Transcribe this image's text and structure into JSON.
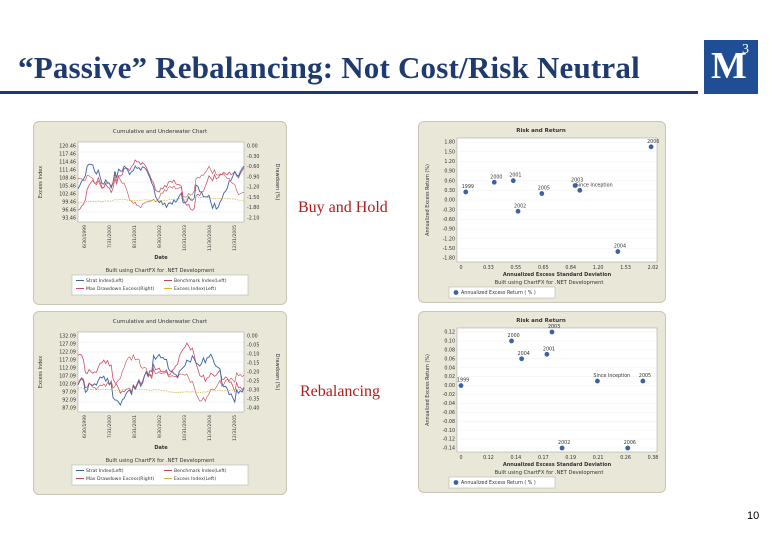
{
  "slide": {
    "title": "“Passive” Rebalancing: Not Cost/Risk Neutral",
    "logo_letter": "M",
    "logo_superscript": "3",
    "page_number": "10",
    "label_buy_hold": "Buy and Hold",
    "label_rebalancing": "Rebalancing",
    "colors": {
      "title": "#1f3a6e",
      "logo_bg": "#1f4e94",
      "overlay_text": "#b01c1c",
      "panel_bg": "#e9e7d8",
      "strat": "#3b62a6",
      "bench": "#c44a4a",
      "drawdown": "#d24a6a",
      "excess": "#d6b23a"
    }
  },
  "charts": {
    "top_left": {
      "title": "Cumulative and Underwater Chart",
      "y_left_label": "Excess Index",
      "y_right_label": "Drawdown (%)",
      "x_label": "Date",
      "y_left_ticks": [
        "120.46",
        "117.46",
        "114.46",
        "111.46",
        "108.46",
        "105.46",
        "102.46",
        "99.46",
        "96.46",
        "93.46"
      ],
      "y_right_ticks": [
        "0.00",
        "-0.30",
        "-0.60",
        "-0.90",
        "-1.20",
        "-1.50",
        "-1.80",
        "-2.10"
      ],
      "x_ticks": [
        "6/30/1999",
        "7/31/2000",
        "8/31/2001",
        "9/30/2002",
        "10/31/2003",
        "11/30/2004",
        "12/31/2005"
      ],
      "built_using": "Built using ChartFX for .NET Development",
      "legend": [
        "Strat Index(Left)",
        "Benchmark Index(Left)",
        "Max Drawdown Excess(Right)",
        "Excess Index(Left)"
      ]
    },
    "top_right": {
      "title": "Risk and Return",
      "y_label": "Annualized Excess Return (%)",
      "x_label": "Annualized Excess Standard Deviation",
      "y_ticks": [
        "1.80",
        "1.50",
        "1.20",
        "0.90",
        "0.60",
        "0.30",
        "0.00",
        "-0.30",
        "-0.60",
        "-0.90",
        "-1.20",
        "-1.50",
        "-1.80"
      ],
      "x_ticks": [
        "0",
        "0.33",
        "0.55",
        "0.65",
        "0.84",
        "1.20",
        "1.53",
        "2.02"
      ],
      "points": [
        {
          "label": "2006",
          "x": 2.0,
          "y": 1.65
        },
        {
          "label": "1999",
          "x": 0.05,
          "y": 0.25
        },
        {
          "label": "2000",
          "x": 0.35,
          "y": 0.55
        },
        {
          "label": "2001",
          "x": 0.55,
          "y": 0.6
        },
        {
          "label": "2005",
          "x": 0.85,
          "y": 0.2
        },
        {
          "label": "2003",
          "x": 1.2,
          "y": 0.45
        },
        {
          "label": "Since Inception",
          "x": 1.25,
          "y": 0.3
        },
        {
          "label": "2002",
          "x": 0.6,
          "y": -0.35
        },
        {
          "label": "2004",
          "x": 1.65,
          "y": -1.6
        }
      ],
      "built_using": "Built using ChartFX for .NET Development",
      "legend": [
        "Annualized Excess Return ( % )"
      ]
    },
    "bottom_left": {
      "title": "Cumulative and Underwater Chart",
      "y_left_label": "Excess Index",
      "y_right_label": "Drawdown (%)",
      "x_label": "Date",
      "y_left_ticks": [
        "132.09",
        "127.09",
        "122.09",
        "117.09",
        "112.09",
        "107.09",
        "102.09",
        "97.09",
        "92.09",
        "87.09"
      ],
      "y_right_ticks": [
        "0.00",
        "-0.05",
        "-0.10",
        "-0.15",
        "-0.20",
        "-0.25",
        "-0.30",
        "-0.35",
        "-0.40"
      ],
      "x_ticks": [
        "6/30/1999",
        "7/31/2000",
        "8/31/2001",
        "9/30/2002",
        "10/31/2003",
        "11/30/2004",
        "12/31/2005"
      ],
      "built_using": "Built using ChartFX for .NET Development",
      "legend": [
        "Strat Index(Left)",
        "Benchmark Index(Left)",
        "Max Drawdown Excess(Right)",
        "Excess Index(Left)"
      ]
    },
    "bottom_right": {
      "title": "Risk and Return",
      "y_label": "Annualized Excess Return (%)",
      "x_label": "Annualized Excess Standard Deviation",
      "y_ticks": [
        "0.12",
        "0.10",
        "0.08",
        "0.06",
        "0.04",
        "0.02",
        "0.00",
        "-0.02",
        "-0.04",
        "-0.06",
        "-0.08",
        "-0.10",
        "-0.12",
        "-0.14"
      ],
      "x_ticks": [
        "0",
        "0.12",
        "0.14",
        "0.17",
        "0.19",
        "0.21",
        "0.26",
        "0.38"
      ],
      "points": [
        {
          "label": "2003",
          "x": 0.18,
          "y": 0.12
        },
        {
          "label": "2000",
          "x": 0.1,
          "y": 0.1
        },
        {
          "label": "2004",
          "x": 0.12,
          "y": 0.06
        },
        {
          "label": "2001",
          "x": 0.17,
          "y": 0.07
        },
        {
          "label": "1999",
          "x": 0.0,
          "y": 0.0
        },
        {
          "label": "Since Inception",
          "x": 0.27,
          "y": 0.01
        },
        {
          "label": "2005",
          "x": 0.36,
          "y": 0.01
        },
        {
          "label": "2002",
          "x": 0.2,
          "y": -0.14
        },
        {
          "label": "2006",
          "x": 0.33,
          "y": -0.14
        }
      ],
      "built_using": "Built using ChartFX for .NET Development",
      "legend": [
        "Annualized Excess Return ( % )"
      ]
    }
  }
}
